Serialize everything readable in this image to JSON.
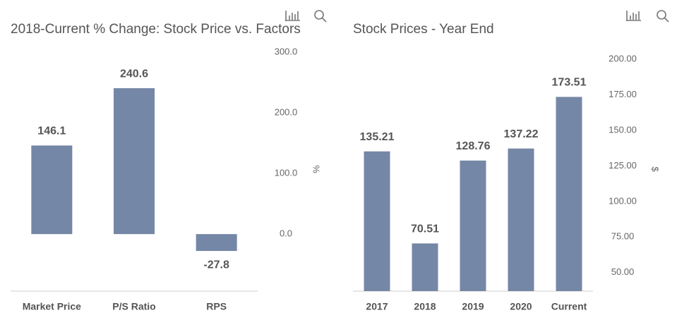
{
  "chart_data": [
    {
      "type": "bar",
      "title": "2018-Current % Change: Stock Price vs. Factors",
      "categories": [
        "Market Price",
        "P/S Ratio",
        "RPS"
      ],
      "values": [
        146.1,
        240.6,
        -27.8
      ],
      "color": "#7587a6",
      "ylabel": "%",
      "ylim": [
        -94,
        300
      ],
      "yticks": [
        {
          "value": 0,
          "label": "0.0"
        },
        {
          "value": 100,
          "label": "100.0"
        },
        {
          "value": 200,
          "label": "200.0"
        },
        {
          "value": 300,
          "label": "300.0"
        }
      ],
      "grid": false
    },
    {
      "type": "bar",
      "title": "Stock Prices - Year End",
      "categories": [
        "2017",
        "2018",
        "2019",
        "2020",
        "Current"
      ],
      "values": [
        135.21,
        70.51,
        128.76,
        137.22,
        173.51
      ],
      "color": "#7587a6",
      "ylabel": "$",
      "ylim": [
        37,
        200
      ],
      "yticks": [
        {
          "value": 50,
          "label": "50.00"
        },
        {
          "value": 75,
          "label": "75.00"
        },
        {
          "value": 100,
          "label": "100.00"
        },
        {
          "value": 125,
          "label": "125.00"
        },
        {
          "value": 150,
          "label": "150.00"
        },
        {
          "value": 175,
          "label": "175.00"
        },
        {
          "value": 200,
          "label": "200.00"
        }
      ],
      "grid": false
    }
  ]
}
